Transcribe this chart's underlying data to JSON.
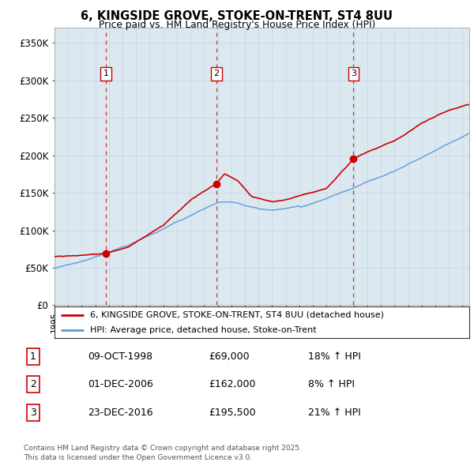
{
  "title": "6, KINGSIDE GROVE, STOKE-ON-TRENT, ST4 8UU",
  "subtitle": "Price paid vs. HM Land Registry's House Price Index (HPI)",
  "ylim": [
    0,
    370000
  ],
  "yticks": [
    0,
    50000,
    100000,
    150000,
    200000,
    250000,
    300000,
    350000
  ],
  "ytick_labels": [
    "£0",
    "£50K",
    "£100K",
    "£150K",
    "£200K",
    "£250K",
    "£300K",
    "£350K"
  ],
  "legend_line1": "6, KINGSIDE GROVE, STOKE-ON-TRENT, ST4 8UU (detached house)",
  "legend_line2": "HPI: Average price, detached house, Stoke-on-Trent",
  "legend_line1_color": "#cc0000",
  "legend_line2_color": "#5b9bd5",
  "sale1_date": "09-OCT-1998",
  "sale1_price": "£69,000",
  "sale1_hpi": "18% ↑ HPI",
  "sale1_year": 1998.78,
  "sale1_value": 69000,
  "sale2_date": "01-DEC-2006",
  "sale2_price": "£162,000",
  "sale2_hpi": "8% ↑ HPI",
  "sale2_year": 2006.92,
  "sale2_value": 162000,
  "sale3_date": "23-DEC-2016",
  "sale3_price": "£195,500",
  "sale3_hpi": "21% ↑ HPI",
  "sale3_year": 2016.98,
  "sale3_value": 195500,
  "footer": "Contains HM Land Registry data © Crown copyright and database right 2025.\nThis data is licensed under the Open Government Licence v3.0.",
  "hpi_color": "#5b9bd5",
  "price_color": "#cc0000",
  "vline_color": "#cc0000",
  "grid_color": "#c8d8e8",
  "bg_color": "#dce8f0",
  "background_color": "#ffffff"
}
